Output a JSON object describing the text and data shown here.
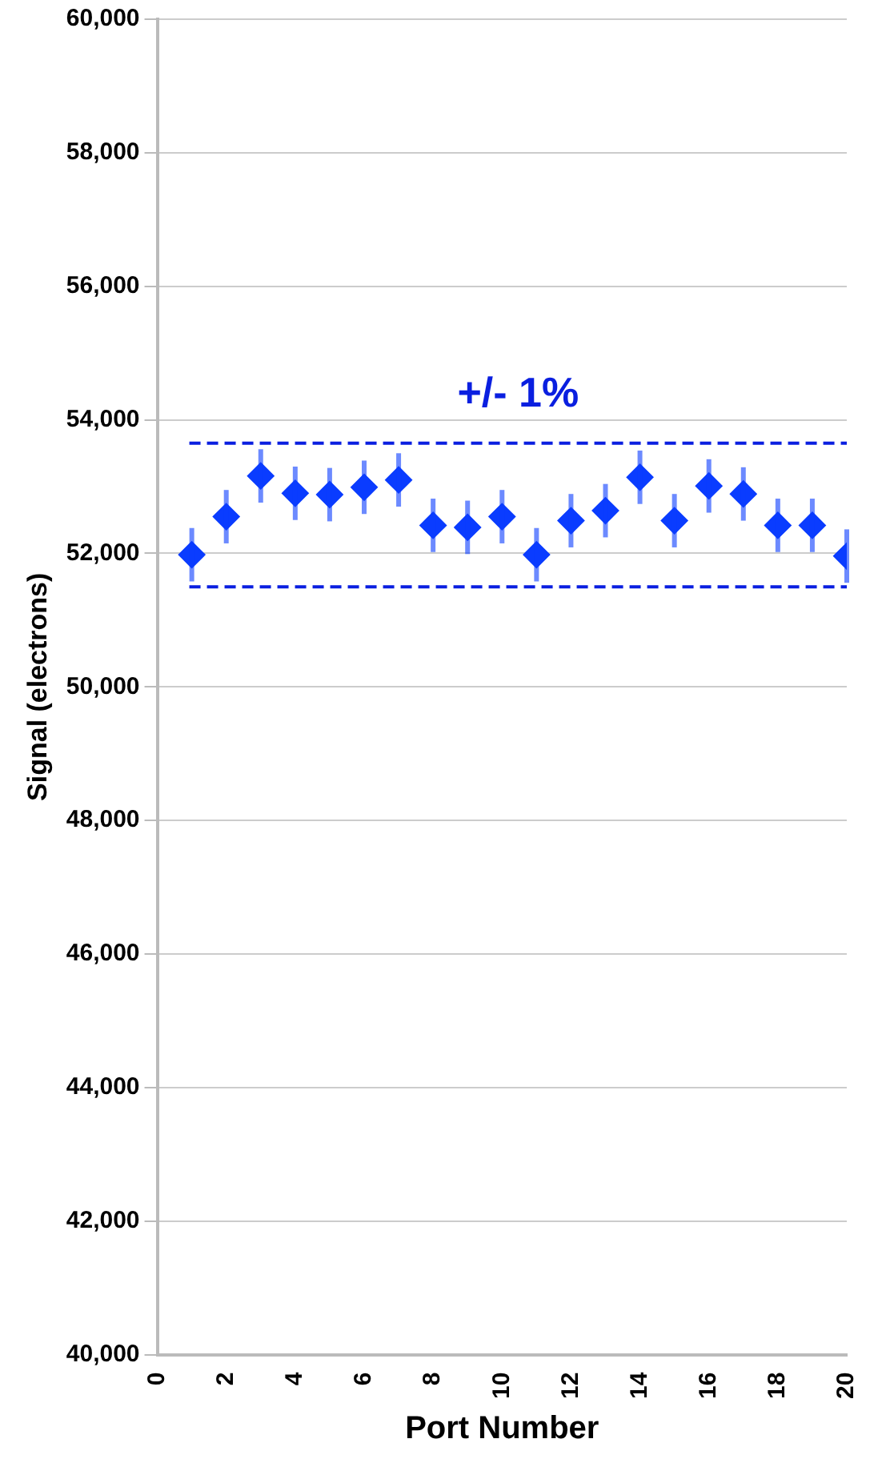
{
  "chart_data": {
    "type": "scatter",
    "xlabel": "Port Number",
    "ylabel": "Signal (electrons)",
    "x": [
      1,
      2,
      3,
      4,
      5,
      6,
      7,
      8,
      9,
      10,
      11,
      12,
      13,
      14,
      15,
      16,
      17,
      18,
      19,
      20
    ],
    "series": [
      {
        "color": "#0a3cff",
        "values": [
          51980,
          52550,
          53160,
          52900,
          52880,
          52990,
          53100,
          52420,
          52390,
          52550,
          51980,
          52490,
          52640,
          53140,
          52490,
          53010,
          52890,
          52420,
          52420,
          51960
        ],
        "errors": [
          400,
          400,
          400,
          400,
          400,
          400,
          400,
          400,
          400,
          400,
          400,
          400,
          400,
          400,
          400,
          400,
          400,
          400,
          400,
          400
        ]
      }
    ],
    "xlim": [
      0,
      20
    ],
    "xticks": [
      0,
      2,
      4,
      6,
      8,
      10,
      12,
      14,
      16,
      18,
      20
    ],
    "ylim": [
      40000,
      60000
    ],
    "yticks": [
      {
        "value": 40000,
        "label": "40,000"
      },
      {
        "value": 42000,
        "label": "42,000"
      },
      {
        "value": 44000,
        "label": "44,000"
      },
      {
        "value": 46000,
        "label": "46,000"
      },
      {
        "value": 48000,
        "label": "48,000"
      },
      {
        "value": 50000,
        "label": "50,000"
      },
      {
        "value": 52000,
        "label": "52,000"
      },
      {
        "value": 54000,
        "label": "54,000"
      },
      {
        "value": 56000,
        "label": "56,000"
      },
      {
        "value": 58000,
        "label": "58,000"
      },
      {
        "value": 60000,
        "label": "60,000"
      }
    ],
    "grid": "y",
    "marker": "diamond",
    "legend": false,
    "ref_lines": [
      {
        "axis": "y",
        "value": 53650,
        "color": "#0a1fe0",
        "line_style": "dashed"
      },
      {
        "axis": "y",
        "value": 51500,
        "color": "#0a1fe0",
        "line_style": "dashed"
      }
    ],
    "annotations": [
      "+/- 1%"
    ]
  }
}
